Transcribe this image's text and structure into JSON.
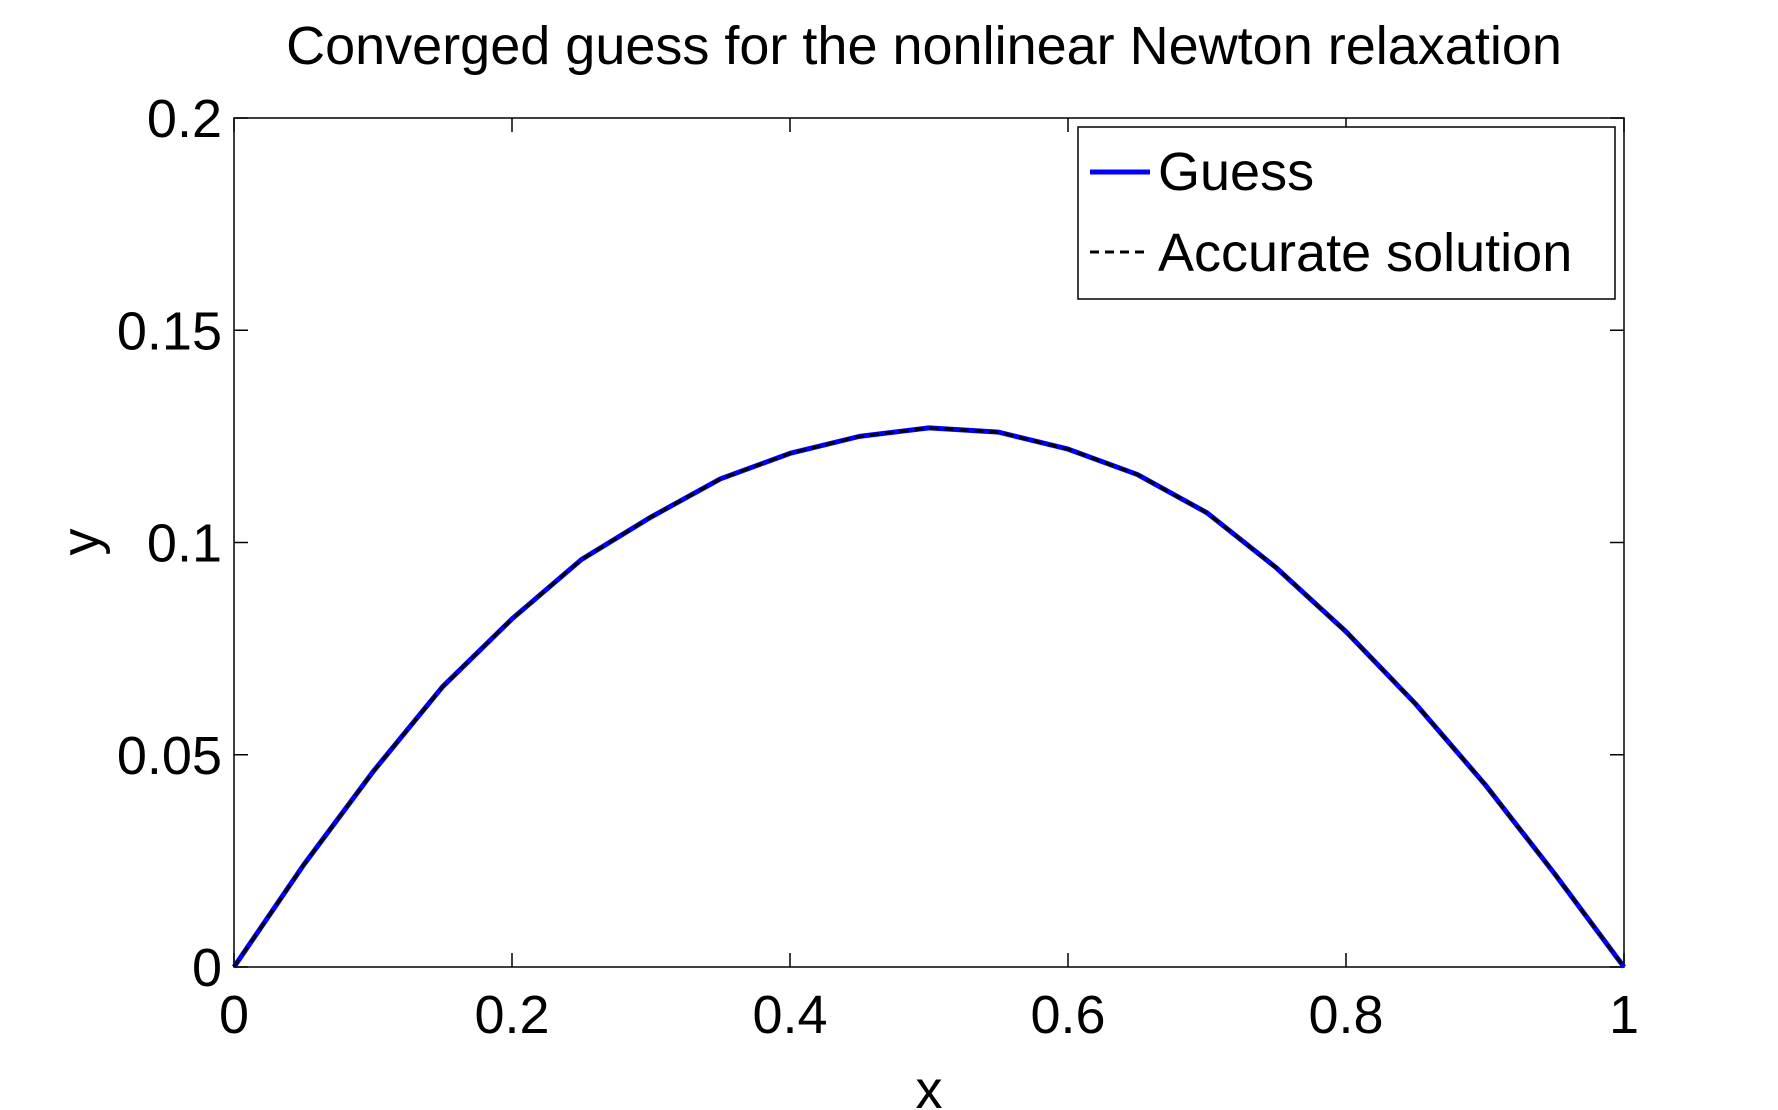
{
  "chart_data": {
    "type": "line",
    "title": "Converged guess for the nonlinear Newton relaxation",
    "xlabel": "x",
    "ylabel": "y",
    "xlim": [
      0,
      1
    ],
    "ylim": [
      0,
      0.2
    ],
    "xticks": [
      0,
      0.2,
      0.4,
      0.6,
      0.8,
      1
    ],
    "xtick_labels": [
      "0",
      "0.2",
      "0.4",
      "0.6",
      "0.8",
      "1"
    ],
    "yticks": [
      0,
      0.05,
      0.1,
      0.15,
      0.2
    ],
    "ytick_labels": [
      "0",
      "0.05",
      "0.1",
      "0.15",
      "0.2"
    ],
    "grid": false,
    "legend_position": "top-right",
    "x": [
      0,
      0.05,
      0.1,
      0.15,
      0.2,
      0.25,
      0.3,
      0.35,
      0.4,
      0.45,
      0.5,
      0.55,
      0.6,
      0.65,
      0.7,
      0.75,
      0.8,
      0.85,
      0.9,
      0.95,
      1
    ],
    "series": [
      {
        "name": "Guess",
        "color": "#0000ff",
        "style": "solid",
        "values": [
          0,
          0.024,
          0.046,
          0.066,
          0.082,
          0.096,
          0.106,
          0.115,
          0.121,
          0.125,
          0.127,
          0.126,
          0.122,
          0.116,
          0.107,
          0.094,
          0.079,
          0.062,
          0.043,
          0.022,
          0
        ]
      },
      {
        "name": "Accurate solution",
        "color": "#000000",
        "style": "dashed",
        "values": [
          0,
          0.024,
          0.046,
          0.066,
          0.082,
          0.096,
          0.106,
          0.115,
          0.121,
          0.125,
          0.127,
          0.126,
          0.122,
          0.116,
          0.107,
          0.094,
          0.079,
          0.062,
          0.043,
          0.022,
          0
        ]
      }
    ]
  }
}
